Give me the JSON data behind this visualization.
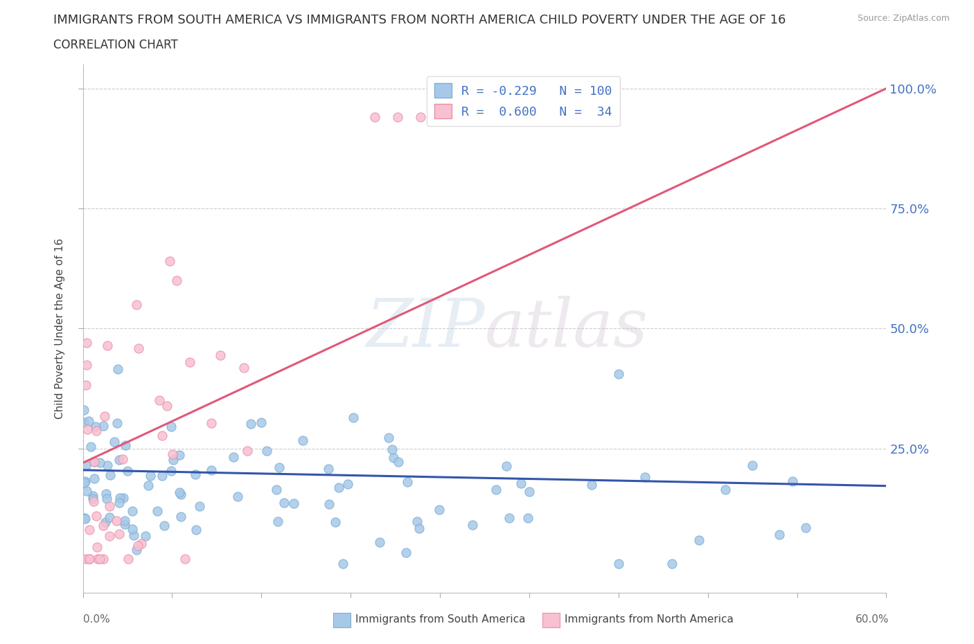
{
  "title": "IMMIGRANTS FROM SOUTH AMERICA VS IMMIGRANTS FROM NORTH AMERICA CHILD POVERTY UNDER THE AGE OF 16",
  "subtitle": "CORRELATION CHART",
  "source": "Source: ZipAtlas.com",
  "ylabel": "Child Poverty Under the Age of 16",
  "ytick_labels": [
    "25.0%",
    "50.0%",
    "75.0%",
    "100.0%"
  ],
  "ytick_values": [
    0.25,
    0.5,
    0.75,
    1.0
  ],
  "watermark_text": "ZIPatlas",
  "background_color": "#ffffff",
  "xmin": 0.0,
  "xmax": 0.6,
  "ymin": -0.05,
  "ymax": 1.05,
  "grid_color": "#cccccc",
  "south_color": "#a8c8e8",
  "south_edge": "#7bafd4",
  "north_color": "#f8c0d0",
  "north_edge": "#e890a8",
  "south_line_color": "#3355aa",
  "north_line_color": "#e05878",
  "legend_R_south": "R = -0.229",
  "legend_N_south": "N = 100",
  "legend_R_north": "R =  0.600",
  "legend_N_north": "N =  34",
  "label_south": "Immigrants from South America",
  "label_north": "Immigrants from North America",
  "south_trend_intercept": 0.205,
  "south_trend_slope": -0.055,
  "north_trend_intercept": 0.22,
  "north_trend_slope": 1.3
}
